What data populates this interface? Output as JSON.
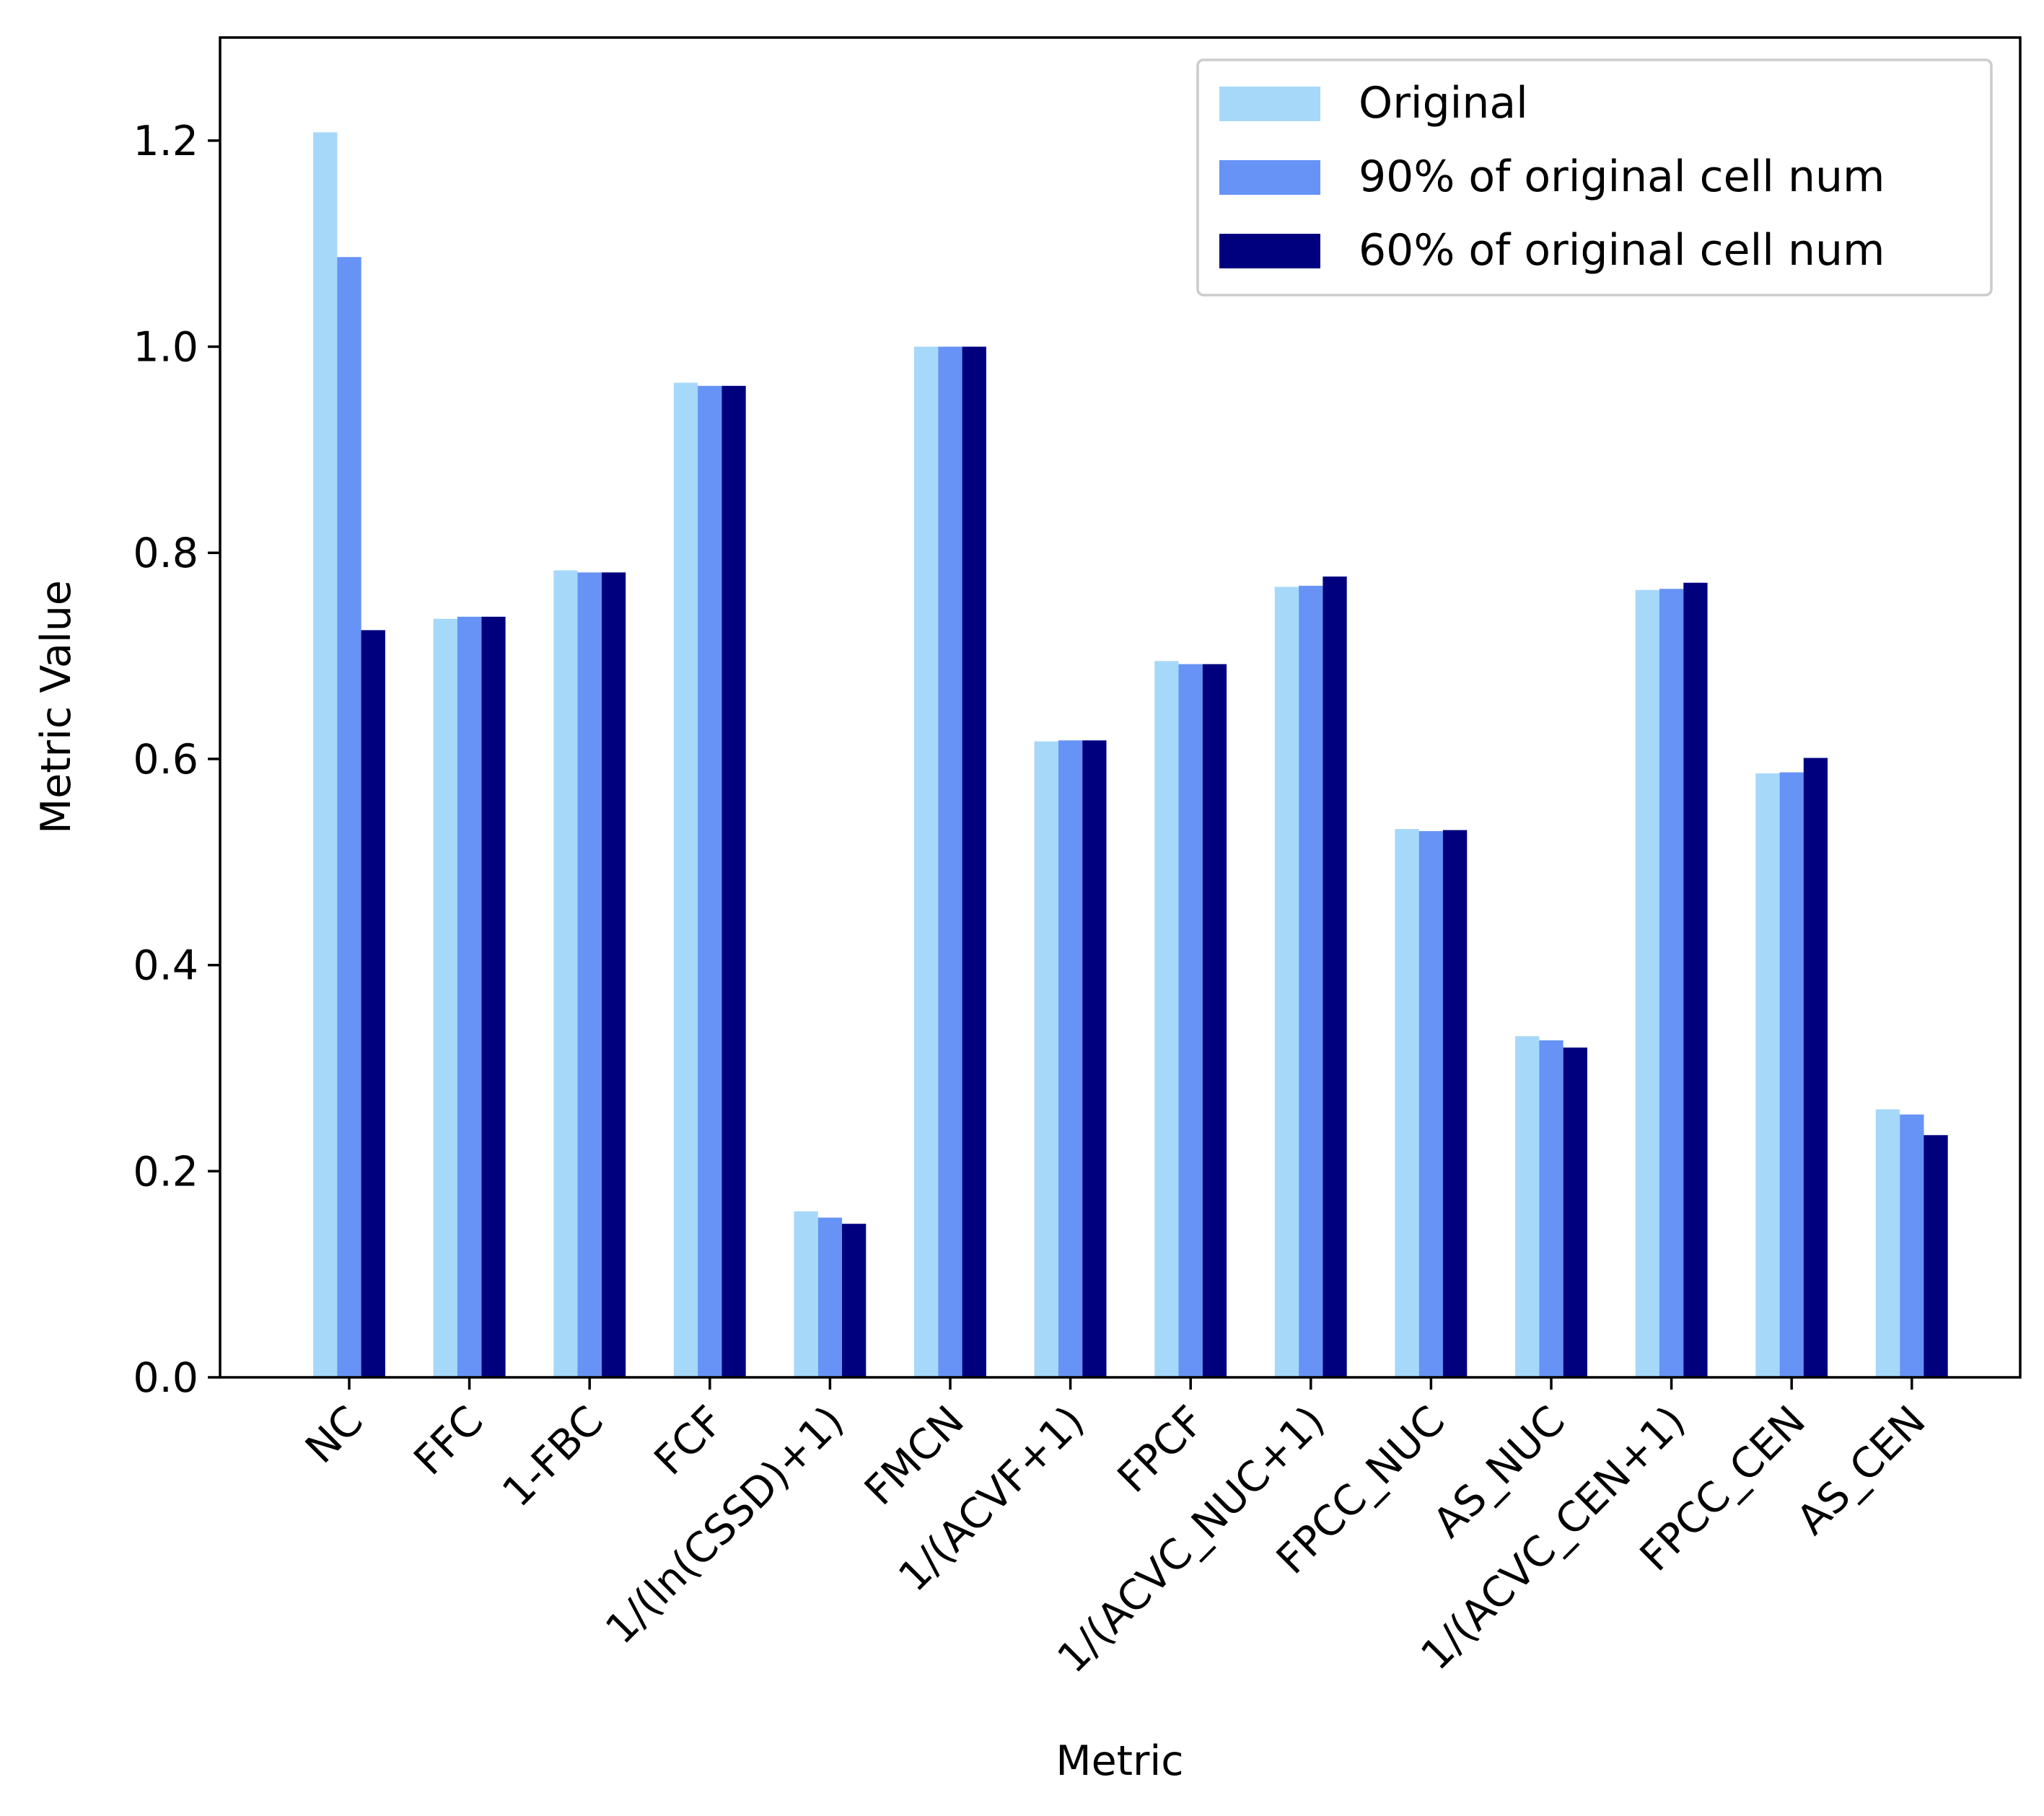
{
  "chart_data": {
    "type": "bar",
    "title": "",
    "xlabel": "Metric",
    "ylabel": "Metric Value",
    "ylim": [
      0,
      1.3
    ],
    "yticks": [
      "0.0",
      "0.2",
      "0.4",
      "0.6",
      "0.8",
      "1.0",
      "1.2"
    ],
    "categories": [
      "NC",
      "FFC",
      "1-FBC",
      "FCF",
      "1/(ln(CSSD)+1)",
      "FMCN",
      "1/(ACVF+1)",
      "FPCF",
      "1/(ACVC_NUC+1)",
      "FPCC_NUC",
      "AS_NUC",
      "1/(ACVC_CEN+1)",
      "FPCC_CEN",
      "AS_CEN"
    ],
    "series": [
      {
        "name": "Original",
        "color": "#a6d8fa",
        "values": [
          1.208,
          0.736,
          0.783,
          0.965,
          0.161,
          1.0,
          0.617,
          0.695,
          0.767,
          0.532,
          0.331,
          0.764,
          0.586,
          0.26
        ]
      },
      {
        "name": "90% of original cell num",
        "color": "#6693f5",
        "values": [
          1.087,
          0.738,
          0.781,
          0.962,
          0.155,
          1.0,
          0.618,
          0.692,
          0.768,
          0.53,
          0.327,
          0.765,
          0.587,
          0.255
        ]
      },
      {
        "name": "60% of original cell num",
        "color": "#00007f",
        "values": [
          0.725,
          0.738,
          0.781,
          0.962,
          0.149,
          1.0,
          0.618,
          0.692,
          0.777,
          0.531,
          0.32,
          0.771,
          0.601,
          0.235
        ]
      }
    ],
    "legend_position": "upper right",
    "grid": false
  }
}
